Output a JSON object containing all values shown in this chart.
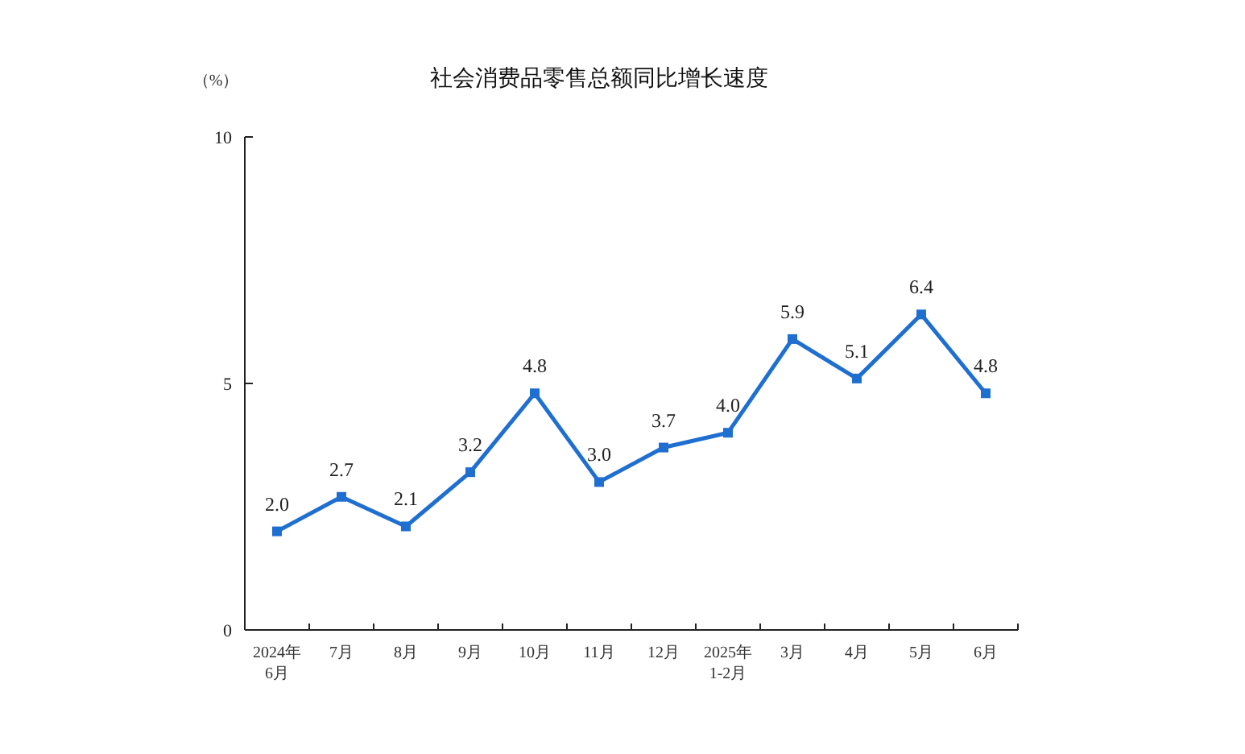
{
  "chart_data": {
    "type": "line",
    "title": "社会消费品零售总额同比增长速度",
    "ylabel": "（%）",
    "categories": [
      "2024年\n6月",
      "7月",
      "8月",
      "9月",
      "10月",
      "11月",
      "12月",
      "2025年\n1-2月",
      "3月",
      "4月",
      "5月",
      "6月"
    ],
    "series": [
      {
        "color": "#1f6fd1",
        "values": [
          2.0,
          2.7,
          2.1,
          3.2,
          4.8,
          3.0,
          3.7,
          4.0,
          5.9,
          5.1,
          6.4,
          4.8
        ],
        "value_labels": [
          "2.0",
          "2.7",
          "2.1",
          "3.2",
          "4.8",
          "3.0",
          "3.7",
          "4.0",
          "5.9",
          "5.1",
          "6.4",
          "4.8"
        ]
      }
    ],
    "ylim": [
      0,
      10
    ],
    "yticks": [
      0,
      5,
      10
    ],
    "grid": false,
    "marker": "square",
    "line_style": "solid"
  }
}
